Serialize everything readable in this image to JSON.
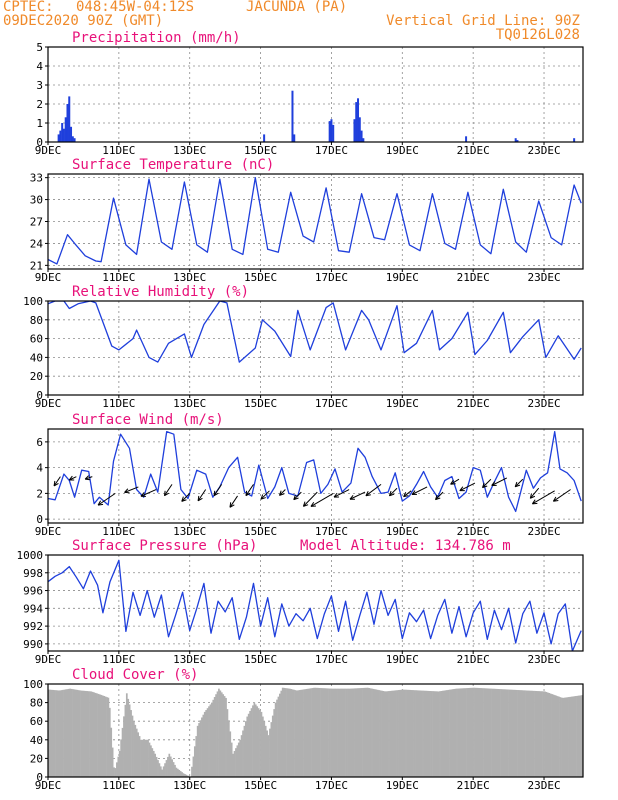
{
  "header": {
    "center": "CPTEC:",
    "coords": "048:45W-04:12S",
    "location": "JACUNDA (PA)",
    "datetime": "09DEC2020 90Z (GMT)",
    "vgrid": "Vertical Grid Line: 90Z",
    "code": "TQ0126L028"
  },
  "colors": {
    "header": "#f08a2a",
    "title": "#e8127a",
    "series": "#1f3fdc",
    "cloud": "#b0b0b0",
    "arrow": "#000000",
    "grid": "#8c8c8c"
  },
  "x_axis": {
    "start_day": 9,
    "end_day": 24.1,
    "ticks": [
      "9DEC",
      "11DEC",
      "13DEC",
      "15DEC",
      "17DEC",
      "19DEC",
      "21DEC",
      "23DEC"
    ],
    "tick_days": [
      9,
      11,
      13,
      15,
      17,
      19,
      21,
      23
    ]
  },
  "chart_data": [
    {
      "type": "bar",
      "title": "Precipitation (mm/h)",
      "ylim": [
        0,
        5
      ],
      "yticks": [
        0,
        1,
        2,
        3,
        4,
        5
      ],
      "x_unit": "day of Dec 2020",
      "x": [
        9.3,
        9.35,
        9.4,
        9.45,
        9.5,
        9.55,
        9.6,
        9.65,
        9.7,
        9.75,
        15.1,
        15.9,
        15.95,
        16.95,
        17.0,
        17.05,
        17.65,
        17.7,
        17.75,
        17.8,
        17.85,
        17.9,
        20.8,
        22.2,
        22.25,
        23.85
      ],
      "values": [
        0.4,
        0.6,
        1.0,
        0.7,
        1.3,
        2.0,
        2.4,
        0.8,
        0.3,
        0.2,
        0.4,
        2.7,
        0.4,
        1.1,
        1.2,
        0.9,
        1.2,
        2.1,
        2.3,
        1.3,
        0.6,
        0.2,
        0.3,
        0.2,
        0.1,
        0.2
      ]
    },
    {
      "type": "line",
      "title": "Surface Temperature (nC)",
      "ylim": [
        20.5,
        33.5
      ],
      "yticks": [
        21,
        24,
        27,
        30,
        33
      ],
      "x": [
        9.0,
        9.25,
        9.55,
        9.75,
        10.05,
        10.35,
        10.5,
        10.85,
        11.2,
        11.5,
        11.85,
        12.2,
        12.5,
        12.85,
        13.2,
        13.5,
        13.85,
        14.2,
        14.5,
        14.85,
        15.2,
        15.5,
        15.85,
        16.2,
        16.5,
        16.85,
        17.2,
        17.5,
        17.85,
        18.2,
        18.5,
        18.85,
        19.2,
        19.5,
        19.85,
        20.2,
        20.5,
        20.85,
        21.2,
        21.5,
        21.85,
        22.2,
        22.5,
        22.85,
        23.2,
        23.5,
        23.85,
        24.05
      ],
      "values": [
        21.8,
        21.2,
        25.2,
        24.0,
        22.3,
        21.6,
        21.5,
        30.2,
        23.8,
        22.5,
        32.8,
        24.2,
        23.2,
        32.4,
        23.8,
        22.8,
        32.8,
        23.2,
        22.5,
        33.0,
        23.2,
        22.8,
        31.0,
        25.0,
        24.2,
        31.6,
        23.0,
        22.8,
        30.8,
        24.8,
        24.5,
        30.8,
        23.8,
        23.0,
        30.8,
        24.0,
        23.2,
        31.0,
        23.8,
        22.6,
        31.4,
        24.2,
        22.8,
        29.8,
        24.8,
        23.8,
        32.0,
        29.5
      ]
    },
    {
      "type": "line",
      "title": "Relative Humidity (%)",
      "ylim": [
        0,
        100
      ],
      "yticks": [
        0,
        20,
        40,
        60,
        80,
        100
      ],
      "x": [
        9.0,
        9.2,
        9.45,
        9.6,
        9.85,
        10.2,
        10.35,
        10.8,
        11.0,
        11.4,
        11.5,
        11.85,
        12.1,
        12.4,
        12.85,
        13.05,
        13.4,
        13.85,
        14.05,
        14.4,
        14.85,
        15.05,
        15.4,
        15.85,
        16.05,
        16.4,
        16.85,
        17.05,
        17.4,
        17.85,
        18.05,
        18.4,
        18.85,
        19.05,
        19.4,
        19.85,
        20.05,
        20.4,
        20.85,
        21.05,
        21.4,
        21.85,
        22.05,
        22.4,
        22.85,
        23.05,
        23.4,
        23.85,
        24.05
      ],
      "values": [
        97,
        100,
        100,
        92,
        97,
        100,
        98,
        52,
        48,
        60,
        69,
        40,
        35,
        55,
        65,
        40,
        75,
        100,
        98,
        35,
        50,
        80,
        68,
        41,
        90,
        48,
        93,
        98,
        48,
        90,
        80,
        48,
        95,
        45,
        55,
        90,
        48,
        60,
        88,
        43,
        58,
        88,
        45,
        62,
        80,
        40,
        63,
        38,
        50
      ]
    },
    {
      "type": "line",
      "title": "Surface Wind (m/s)",
      "ylim": [
        -0.3,
        7
      ],
      "yticks": [
        0,
        2,
        4,
        6
      ],
      "x": [
        9.0,
        9.2,
        9.45,
        9.6,
        9.75,
        9.95,
        10.15,
        10.3,
        10.45,
        10.7,
        10.85,
        11.05,
        11.3,
        11.5,
        11.7,
        11.9,
        12.1,
        12.35,
        12.55,
        12.75,
        12.95,
        13.2,
        13.45,
        13.65,
        13.85,
        14.1,
        14.35,
        14.55,
        14.75,
        14.95,
        15.2,
        15.4,
        15.6,
        15.8,
        16.05,
        16.3,
        16.5,
        16.7,
        16.9,
        17.1,
        17.3,
        17.55,
        17.75,
        17.95,
        18.15,
        18.4,
        18.6,
        18.8,
        19.0,
        19.2,
        19.4,
        19.6,
        19.8,
        20.0,
        20.2,
        20.4,
        20.6,
        20.8,
        21.0,
        21.2,
        21.4,
        21.6,
        21.8,
        22.0,
        22.2,
        22.35,
        22.5,
        22.7,
        22.9,
        23.1,
        23.3,
        23.45,
        23.65,
        23.85,
        24.05
      ],
      "values": [
        1.6,
        1.5,
        3.5,
        3.0,
        1.7,
        3.8,
        3.7,
        1.2,
        1.7,
        1.1,
        4.5,
        6.6,
        5.5,
        2.3,
        1.7,
        3.5,
        2.1,
        6.8,
        6.6,
        2.3,
        1.6,
        3.8,
        3.5,
        1.7,
        2.5,
        4.0,
        4.8,
        2.1,
        1.8,
        4.2,
        1.6,
        2.5,
        4.0,
        2.0,
        1.8,
        4.4,
        4.6,
        2.0,
        2.7,
        3.9,
        2.1,
        2.8,
        5.5,
        4.8,
        3.3,
        2.0,
        2.1,
        3.6,
        1.4,
        1.8,
        2.7,
        3.7,
        2.5,
        1.7,
        3.0,
        3.3,
        1.6,
        2.1,
        4.0,
        3.8,
        1.7,
        2.9,
        4.0,
        1.7,
        0.6,
        2.2,
        3.8,
        2.4,
        3.2,
        3.6,
        6.8,
        3.9,
        3.6,
        3.0,
        1.4
      ],
      "arrows": {
        "x": [
          9.35,
          9.8,
          10.25,
          10.9,
          11.55,
          12.05,
          12.5,
          13.0,
          13.45,
          13.9,
          14.35,
          14.8,
          15.25,
          15.7,
          16.15,
          16.6,
          17.05,
          17.5,
          17.95,
          18.4,
          18.85,
          19.25,
          19.7,
          20.15,
          20.6,
          21.05,
          21.5,
          21.95,
          22.4,
          22.85,
          23.3,
          23.75
        ],
        "y": [
          3.3,
          3.3,
          3.3,
          2.0,
          2.5,
          2.3,
          2.7,
          2.0,
          2.3,
          2.7,
          1.8,
          2.7,
          2.2,
          2.3,
          2.1,
          2.1,
          2.0,
          2.3,
          2.1,
          2.7,
          2.4,
          2.2,
          2.5,
          2.1,
          3.1,
          2.8,
          3.1,
          3.2,
          3.1,
          2.4,
          2.2,
          2.3
        ],
        "u": [
          -1.5,
          -1.7,
          -1.7,
          -4.1,
          -3.3,
          -3.6,
          -1.8,
          -1.9,
          -1.8,
          -1.8,
          -1.8,
          -1.8,
          -2.0,
          -1.4,
          -1.8,
          -3.3,
          -5.3,
          -3.6,
          -3.6,
          -3.6,
          -1.8,
          -1.8,
          -3.6,
          -1.8,
          -2.0,
          -3.6,
          -2.0,
          -3.6,
          -1.8,
          -2.0,
          -5.3,
          -4.1
        ],
        "v": [
          -2.2,
          -0.8,
          -0.6,
          -2.8,
          -1.3,
          -1.6,
          -2.7,
          -1.9,
          -2.7,
          -2.7,
          -2.7,
          -2.7,
          -2.0,
          -1.4,
          -1.8,
          -3.4,
          -3.1,
          -1.8,
          -1.7,
          -2.7,
          -1.8,
          -1.4,
          -1.8,
          -1.8,
          -1.2,
          -1.8,
          -2.0,
          -1.8,
          -1.8,
          -2.4,
          -3.1,
          -2.8
        ]
      }
    },
    {
      "type": "line",
      "title": "Surface Pressure (hPa)",
      "annotation": "Model Altitude: 134.786 m",
      "ylim": [
        989.2,
        1000
      ],
      "yticks": [
        990,
        992,
        994,
        996,
        998,
        1000
      ],
      "x": [
        9.0,
        9.2,
        9.4,
        9.6,
        9.8,
        10.0,
        10.2,
        10.4,
        10.55,
        10.75,
        11.0,
        11.2,
        11.4,
        11.6,
        11.8,
        12.0,
        12.2,
        12.4,
        12.6,
        12.8,
        13.0,
        13.2,
        13.4,
        13.6,
        13.8,
        14.0,
        14.2,
        14.4,
        14.6,
        14.8,
        15.0,
        15.2,
        15.4,
        15.6,
        15.8,
        16.0,
        16.2,
        16.4,
        16.6,
        16.8,
        17.0,
        17.2,
        17.4,
        17.6,
        17.8,
        18.0,
        18.2,
        18.4,
        18.6,
        18.8,
        19.0,
        19.2,
        19.4,
        19.6,
        19.8,
        20.0,
        20.2,
        20.4,
        20.6,
        20.8,
        21.0,
        21.2,
        21.4,
        21.6,
        21.8,
        22.0,
        22.2,
        22.4,
        22.6,
        22.8,
        23.0,
        23.2,
        23.4,
        23.6,
        23.8,
        24.05
      ],
      "values": [
        997.0,
        997.6,
        998.0,
        998.7,
        997.5,
        996.2,
        998.2,
        996.6,
        993.5,
        997.0,
        999.4,
        991.4,
        995.8,
        993.2,
        996.0,
        993.0,
        995.5,
        990.8,
        993.2,
        995.8,
        991.5,
        994.0,
        996.8,
        991.2,
        994.8,
        993.6,
        995.2,
        990.5,
        993.0,
        996.8,
        992.0,
        995.2,
        990.8,
        994.5,
        992.0,
        993.4,
        992.6,
        994.0,
        990.6,
        993.4,
        995.4,
        991.4,
        994.8,
        990.4,
        993.2,
        995.8,
        992.2,
        996.0,
        993.2,
        995.0,
        990.6,
        993.5,
        992.5,
        993.8,
        990.6,
        993.2,
        995.0,
        991.2,
        994.2,
        990.8,
        993.5,
        994.8,
        990.5,
        993.8,
        991.6,
        994.0,
        990.1,
        993.4,
        994.8,
        991.2,
        993.5,
        990.0,
        993.4,
        994.5,
        989.2,
        991.5
      ]
    },
    {
      "type": "area",
      "title": "Cloud Cover (%)",
      "ylim": [
        0,
        100
      ],
      "yticks": [
        0,
        20,
        40,
        60,
        80,
        100
      ],
      "x": [
        9.0,
        9.3,
        9.6,
        9.9,
        10.2,
        10.5,
        10.7,
        10.85,
        11.0,
        11.2,
        11.4,
        11.6,
        11.8,
        12.0,
        12.2,
        12.4,
        12.6,
        12.8,
        13.0,
        13.2,
        13.4,
        13.6,
        13.8,
        14.0,
        14.2,
        14.4,
        14.6,
        14.8,
        15.0,
        15.2,
        15.4,
        15.6,
        15.8,
        16.0,
        16.5,
        17.0,
        17.5,
        18.0,
        18.5,
        19.0,
        19.5,
        20.0,
        20.5,
        21.0,
        21.5,
        22.0,
        22.5,
        23.0,
        23.5,
        24.05
      ],
      "values": [
        94,
        93,
        95,
        93,
        92,
        88,
        85,
        5,
        28,
        90,
        60,
        40,
        40,
        25,
        8,
        25,
        10,
        4,
        0,
        55,
        70,
        80,
        95,
        85,
        25,
        40,
        65,
        80,
        70,
        45,
        80,
        96,
        95,
        93,
        96,
        95,
        95,
        96,
        92,
        94,
        93,
        92,
        95,
        96,
        95,
        94,
        93,
        92,
        85,
        88
      ]
    }
  ]
}
